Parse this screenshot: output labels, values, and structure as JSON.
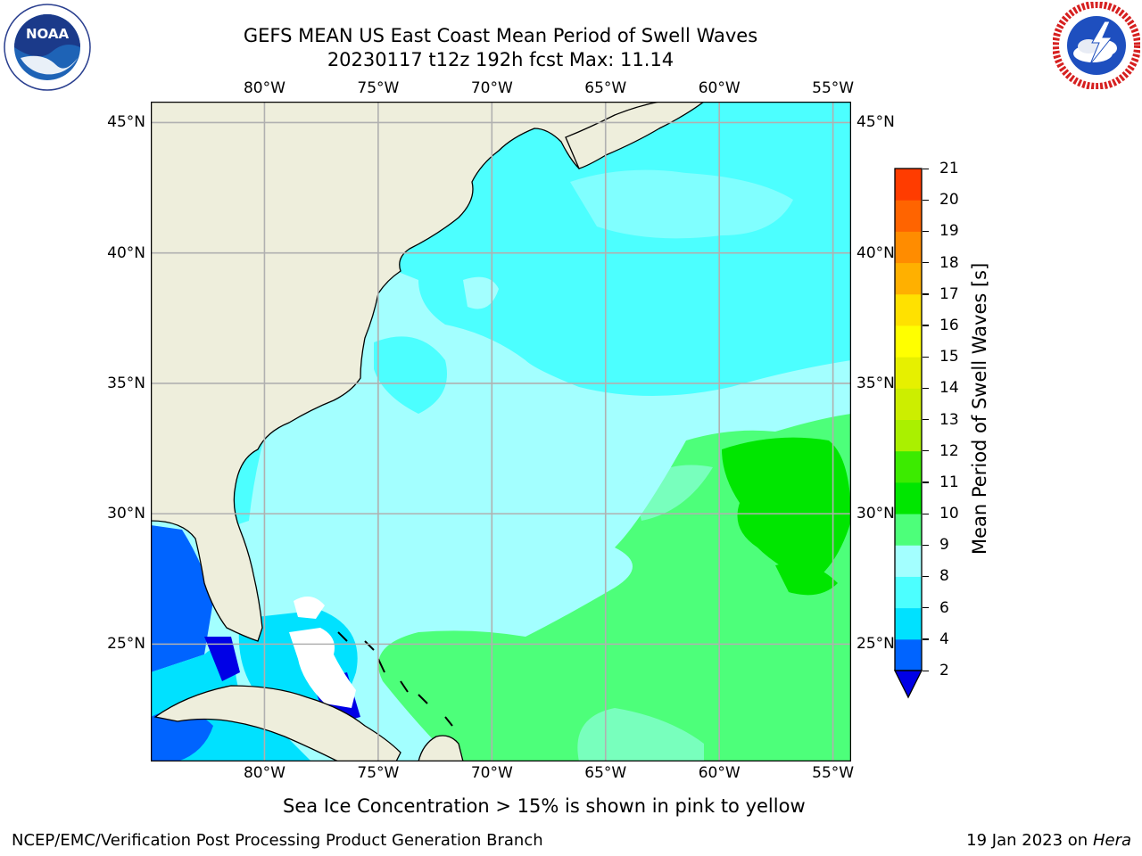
{
  "header": {
    "title_line1": "GEFS MEAN US East Coast Mean Period of Swell Waves",
    "title_line2": "20230117 t12z 192h fcst   Max: 11.14"
  },
  "logos": {
    "left": {
      "name": "noaa-logo",
      "text": "NOAA",
      "ring_text": "NATIONAL OCEANIC AND ATMOSPHERIC ADMINISTRATION · U.S. DEPARTMENT OF COMMERCE"
    },
    "right": {
      "name": "nws-logo",
      "ring_text": "NATIONAL WEATHER SERVICE"
    }
  },
  "map": {
    "lon_labels": [
      "80°W",
      "75°W",
      "70°W",
      "65°W",
      "60°W",
      "55°W"
    ],
    "lon_values": [
      -80,
      -75,
      -70,
      -65,
      -60,
      -55
    ],
    "lat_labels": [
      "45°N",
      "40°N",
      "35°N",
      "30°N",
      "25°N"
    ],
    "lat_values": [
      45,
      40,
      35,
      30,
      25
    ],
    "extent": {
      "lon_min": -85,
      "lon_max": -54.2,
      "lat_min": 20.5,
      "lat_max": 45.8
    },
    "colors": {
      "land": "#eeeedc",
      "grid": "#b0b0b0",
      "coast": "#000000"
    }
  },
  "colorbar": {
    "label": "Mean Period of Swell Waves [s]",
    "ticks": [
      "2",
      "4",
      "6",
      "8",
      "9",
      "10",
      "11",
      "12",
      "13",
      "14",
      "15",
      "16",
      "17",
      "18",
      "19",
      "20",
      "21"
    ],
    "colors": [
      "#0064ff",
      "#00e1ff",
      "#4cffff",
      "#a3ffff",
      "#4dff7a",
      "#00e600",
      "#3ceb00",
      "#aaf000",
      "#ccee00",
      "#e6f000",
      "#ffff00",
      "#ffe100",
      "#ffb000",
      "#ff8c00",
      "#ff6400",
      "#ff3c00",
      "#ff0000"
    ],
    "under_color": "#0000e6"
  },
  "note": "Sea Ice Concentration > 15% is shown in pink to yellow",
  "footer": {
    "left": "NCEP/EMC/Verification Post Processing Product Generation Branch",
    "date": "19 Jan 2023 on ",
    "host": "Hera"
  }
}
